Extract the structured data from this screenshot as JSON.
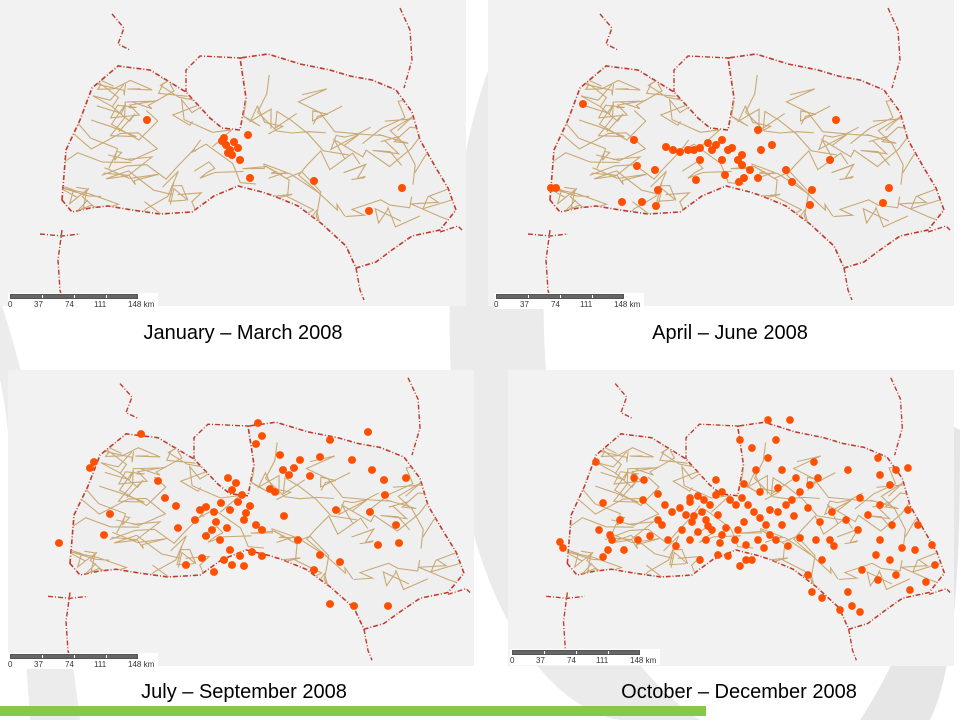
{
  "panels": [
    {
      "caption": "January – March 2008",
      "scale": {
        "ticks": [
          "0",
          "37",
          "74",
          "111",
          "148 km"
        ]
      },
      "incidents": [
        [
          147,
          120
        ],
        [
          224,
          138
        ],
        [
          226,
          145
        ],
        [
          230,
          150
        ],
        [
          234,
          142
        ],
        [
          232,
          155
        ],
        [
          238,
          148
        ],
        [
          228,
          153
        ],
        [
          240,
          160
        ],
        [
          248,
          135
        ],
        [
          314,
          181
        ],
        [
          402,
          188
        ],
        [
          369,
          211
        ],
        [
          250,
          178
        ],
        [
          222,
          141
        ]
      ]
    },
    {
      "caption": "April – June 2008",
      "scale": {
        "ticks": [
          "0",
          "37",
          "74",
          "111",
          "148 km"
        ]
      },
      "incidents": [
        [
          583,
          104
        ],
        [
          551,
          188
        ],
        [
          556,
          188
        ],
        [
          634,
          140
        ],
        [
          666,
          147
        ],
        [
          673,
          150
        ],
        [
          680,
          152
        ],
        [
          688,
          150
        ],
        [
          694,
          150
        ],
        [
          700,
          148
        ],
        [
          708,
          143
        ],
        [
          712,
          150
        ],
        [
          716,
          145
        ],
        [
          722,
          140
        ],
        [
          728,
          150
        ],
        [
          732,
          148
        ],
        [
          738,
          160
        ],
        [
          742,
          165
        ],
        [
          750,
          170
        ],
        [
          758,
          130
        ],
        [
          761,
          150
        ],
        [
          772,
          145
        ],
        [
          786,
          170
        ],
        [
          758,
          178
        ],
        [
          792,
          182
        ],
        [
          812,
          190
        ],
        [
          830,
          160
        ],
        [
          836,
          120
        ],
        [
          889,
          188
        ],
        [
          883,
          203
        ],
        [
          810,
          205
        ],
        [
          696,
          180
        ],
        [
          700,
          160
        ],
        [
          722,
          160
        ],
        [
          637,
          166
        ],
        [
          655,
          170
        ],
        [
          658,
          190
        ],
        [
          622,
          202
        ],
        [
          642,
          202
        ],
        [
          656,
          206
        ],
        [
          744,
          178
        ],
        [
          739,
          182
        ],
        [
          725,
          175
        ],
        [
          742,
          155
        ]
      ]
    },
    {
      "caption": "July – September 2008",
      "scale": {
        "ticks": [
          "0",
          "37",
          "74",
          "111",
          "148 km"
        ]
      },
      "incidents": [
        [
          94,
          462
        ],
        [
          90,
          468
        ],
        [
          141,
          434
        ],
        [
          110,
          514
        ],
        [
          104,
          535
        ],
        [
          59,
          543
        ],
        [
          158,
          481
        ],
        [
          165,
          498
        ],
        [
          176,
          506
        ],
        [
          178,
          528
        ],
        [
          195,
          520
        ],
        [
          200,
          510
        ],
        [
          206,
          507
        ],
        [
          214,
          512
        ],
        [
          221,
          503
        ],
        [
          230,
          510
        ],
        [
          238,
          502
        ],
        [
          242,
          495
        ],
        [
          236,
          483
        ],
        [
          228,
          478
        ],
        [
          232,
          490
        ],
        [
          216,
          522
        ],
        [
          212,
          530
        ],
        [
          227,
          528
        ],
        [
          244,
          520
        ],
        [
          250,
          506
        ],
        [
          246,
          513
        ],
        [
          256,
          525
        ],
        [
          262,
          530
        ],
        [
          206,
          536
        ],
        [
          220,
          540
        ],
        [
          230,
          550
        ],
        [
          224,
          560
        ],
        [
          232,
          565
        ],
        [
          240,
          556
        ],
        [
          202,
          558
        ],
        [
          214,
          572
        ],
        [
          186,
          565
        ],
        [
          270,
          489
        ],
        [
          275,
          492
        ],
        [
          283,
          470
        ],
        [
          289,
          475
        ],
        [
          294,
          468
        ],
        [
          280,
          455
        ],
        [
          256,
          444
        ],
        [
          258,
          423
        ],
        [
          262,
          436
        ],
        [
          300,
          460
        ],
        [
          310,
          476
        ],
        [
          320,
          457
        ],
        [
          330,
          440
        ],
        [
          352,
          460
        ],
        [
          368,
          432
        ],
        [
          372,
          470
        ],
        [
          384,
          480
        ],
        [
          406,
          478
        ],
        [
          385,
          495
        ],
        [
          370,
          512
        ],
        [
          396,
          525
        ],
        [
          399,
          543
        ],
        [
          378,
          545
        ],
        [
          336,
          510
        ],
        [
          320,
          555
        ],
        [
          340,
          562
        ],
        [
          330,
          604
        ],
        [
          354,
          606
        ],
        [
          388,
          606
        ],
        [
          314,
          570
        ],
        [
          284,
          516
        ],
        [
          298,
          540
        ],
        [
          244,
          566
        ],
        [
          262,
          556
        ],
        [
          252,
          552
        ]
      ]
    },
    {
      "caption": "October – December 2008",
      "scale": {
        "ticks": [
          "0",
          "37",
          "74",
          "111",
          "148 km"
        ]
      },
      "incidents": [
        [
          596,
          462
        ],
        [
          560,
          542
        ],
        [
          563,
          548
        ],
        [
          603,
          503
        ],
        [
          599,
          530
        ],
        [
          612,
          540
        ],
        [
          608,
          550
        ],
        [
          603,
          557
        ],
        [
          620,
          520
        ],
        [
          634,
          478
        ],
        [
          643,
          500
        ],
        [
          658,
          494
        ],
        [
          665,
          505
        ],
        [
          672,
          512
        ],
        [
          680,
          508
        ],
        [
          690,
          502
        ],
        [
          698,
          496
        ],
        [
          704,
          500
        ],
        [
          710,
          505
        ],
        [
          716,
          495
        ],
        [
          722,
          492
        ],
        [
          730,
          500
        ],
        [
          736,
          505
        ],
        [
          742,
          498
        ],
        [
          748,
          505
        ],
        [
          754,
          512
        ],
        [
          760,
          518
        ],
        [
          766,
          525
        ],
        [
          770,
          510
        ],
        [
          778,
          512
        ],
        [
          786,
          505
        ],
        [
          792,
          500
        ],
        [
          800,
          492
        ],
        [
          810,
          485
        ],
        [
          818,
          478
        ],
        [
          832,
          512
        ],
        [
          846,
          520
        ],
        [
          858,
          530
        ],
        [
          868,
          515
        ],
        [
          880,
          505
        ],
        [
          890,
          485
        ],
        [
          880,
          475
        ],
        [
          896,
          470
        ],
        [
          908,
          468
        ],
        [
          892,
          525
        ],
        [
          880,
          540
        ],
        [
          876,
          555
        ],
        [
          890,
          560
        ],
        [
          902,
          548
        ],
        [
          915,
          550
        ],
        [
          932,
          545
        ],
        [
          935,
          565
        ],
        [
          926,
          582
        ],
        [
          910,
          590
        ],
        [
          896,
          575
        ],
        [
          878,
          580
        ],
        [
          862,
          570
        ],
        [
          848,
          592
        ],
        [
          852,
          606
        ],
        [
          860,
          612
        ],
        [
          840,
          610
        ],
        [
          822,
          598
        ],
        [
          812,
          592
        ],
        [
          808,
          575
        ],
        [
          822,
          560
        ],
        [
          834,
          546
        ],
        [
          816,
          540
        ],
        [
          800,
          538
        ],
        [
          788,
          546
        ],
        [
          776,
          540
        ],
        [
          764,
          548
        ],
        [
          752,
          560
        ],
        [
          740,
          566
        ],
        [
          728,
          556
        ],
        [
          720,
          543
        ],
        [
          706,
          540
        ],
        [
          698,
          532
        ],
        [
          690,
          540
        ],
        [
          676,
          546
        ],
        [
          668,
          540
        ],
        [
          682,
          530
        ],
        [
          692,
          522
        ],
        [
          706,
          520
        ],
        [
          712,
          530
        ],
        [
          726,
          528
        ],
        [
          738,
          530
        ],
        [
          744,
          522
        ],
        [
          718,
          515
        ],
        [
          702,
          512
        ],
        [
          686,
          515
        ],
        [
          662,
          525
        ],
        [
          650,
          536
        ],
        [
          638,
          540
        ],
        [
          624,
          550
        ],
        [
          610,
          535
        ],
        [
          746,
          560
        ],
        [
          718,
          555
        ],
        [
          700,
          560
        ],
        [
          740,
          440
        ],
        [
          752,
          448
        ],
        [
          776,
          440
        ],
        [
          768,
          458
        ],
        [
          782,
          470
        ],
        [
          756,
          470
        ],
        [
          744,
          484
        ],
        [
          778,
          488
        ],
        [
          796,
          478
        ],
        [
          760,
          492
        ],
        [
          814,
          462
        ],
        [
          848,
          470
        ],
        [
          878,
          458
        ],
        [
          908,
          510
        ],
        [
          918,
          525
        ],
        [
          860,
          498
        ],
        [
          830,
          540
        ],
        [
          820,
          522
        ],
        [
          808,
          508
        ],
        [
          794,
          516
        ],
        [
          782,
          525
        ],
        [
          770,
          535
        ],
        [
          758,
          540
        ],
        [
          746,
          545
        ],
        [
          735,
          540
        ],
        [
          722,
          535
        ],
        [
          708,
          526
        ],
        [
          694,
          516
        ],
        [
          644,
          480
        ],
        [
          658,
          520
        ],
        [
          690,
          498
        ],
        [
          716,
          480
        ],
        [
          768,
          420
        ],
        [
          790,
          420
        ]
      ]
    }
  ]
}
